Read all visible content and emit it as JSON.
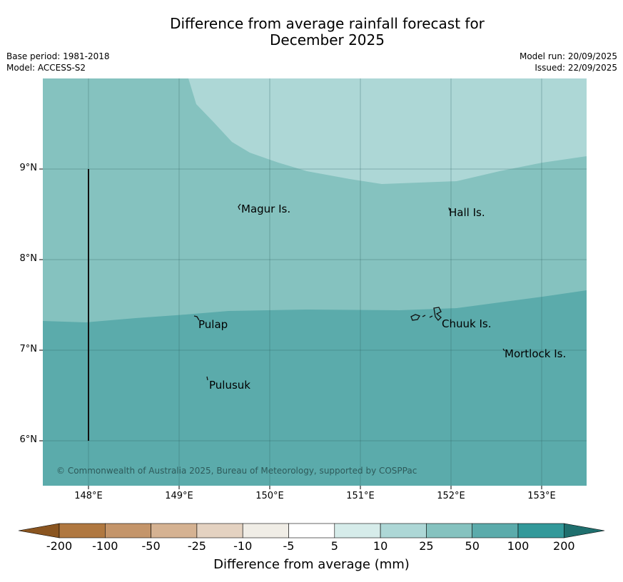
{
  "title_line1": "Difference from average rainfall forecast for",
  "title_line2": "December 2025",
  "meta_left": {
    "base_period": "Base period: 1981-2018",
    "model": "Model: ACCESS-S2"
  },
  "meta_right": {
    "model_run": "Model run: 20/09/2025",
    "issued": "Issued: 22/09/2025"
  },
  "map": {
    "lon_labels": [
      "148°E",
      "149°E",
      "150°E",
      "151°E",
      "152°E",
      "153°E"
    ],
    "lat_labels": [
      "9°N",
      "8°N",
      "7°N",
      "6°N"
    ],
    "places": [
      {
        "name": "Magur Is."
      },
      {
        "name": "Hall Is."
      },
      {
        "name": "Pulap"
      },
      {
        "name": "Chuuk Is."
      },
      {
        "name": "Mortlock Is."
      },
      {
        "name": "Pulusuk"
      }
    ],
    "region_colors": {
      "class_10_25": "#add7d6",
      "class_25_50": "#85c2bf",
      "class_50_100": "#5babab"
    },
    "copyright": "© Commonwealth of Australia 2025, Bureau of Meteorology, supported by COSPPac"
  },
  "colorbar": {
    "ticks": [
      "-200",
      "-100",
      "-50",
      "-25",
      "-10",
      "-5",
      "5",
      "10",
      "25",
      "50",
      "100",
      "200"
    ],
    "colors": [
      "#8a5520",
      "#b07840",
      "#c4956a",
      "#d5b292",
      "#e4d2c1",
      "#f0ede6",
      "#ffffff",
      "#d6ecea",
      "#add7d6",
      "#85c2bf",
      "#5babab",
      "#33999a",
      "#1f6f6e"
    ],
    "label": "Difference from average (mm)"
  }
}
